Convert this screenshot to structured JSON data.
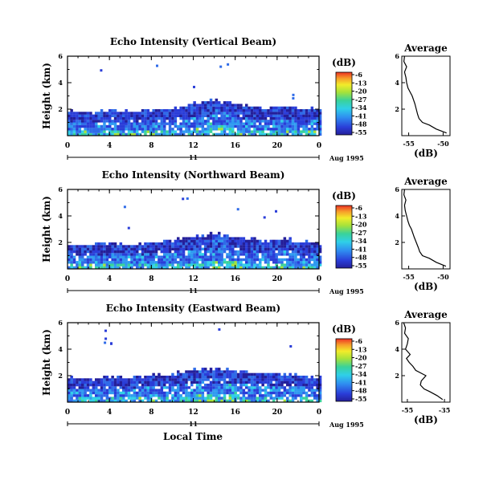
{
  "figure": {
    "time_axis_label": "Local Time",
    "date_label": "Aug 1995",
    "day_label": "11",
    "cbar_unit": "(dB)",
    "avg_title": "Average",
    "avg_xlabel": "(dB)"
  },
  "chart_data": [
    {
      "type": "heatmap",
      "title": "Echo Intensity (Vertical Beam)",
      "ylabel": "Height (km)",
      "xlabel": "Local Time",
      "x_ticks": [
        "0",
        "4",
        "8",
        "12",
        "16",
        "20",
        "0"
      ],
      "x_range_hours": [
        0,
        24
      ],
      "y_ticks": [
        "2",
        "4",
        "6"
      ],
      "y_range_km": [
        0,
        6
      ],
      "colorbar": {
        "unit": "(dB)",
        "ticks": [
          "-6",
          "-13",
          "-20",
          "-27",
          "-34",
          "-41",
          "-48",
          "-55"
        ],
        "range_db": [
          -55,
          -6
        ]
      },
      "echo_top_km": [
        [
          0,
          1.9
        ],
        [
          2,
          1.8
        ],
        [
          4,
          2.0
        ],
        [
          6,
          1.8
        ],
        [
          8,
          2.0
        ],
        [
          10,
          2.1
        ],
        [
          12,
          2.5
        ],
        [
          13.5,
          2.7
        ],
        [
          15,
          2.6
        ],
        [
          17,
          2.3
        ],
        [
          19,
          2.2
        ],
        [
          21,
          2.3
        ],
        [
          22,
          2.1
        ],
        [
          24,
          2.0
        ]
      ],
      "profile": {
        "title": "Average",
        "xlabel": "(dB)",
        "x_ticks": [
          "-55",
          "-50"
        ],
        "x_range": [
          -56,
          -49
        ],
        "y_ticks": [
          "2",
          "4",
          "6"
        ],
        "height_km": [
          0.2,
          0.5,
          0.8,
          1.0,
          1.3,
          1.6,
          2.0,
          2.4,
          2.7,
          3.0,
          3.3,
          3.6,
          4.0,
          4.4,
          4.8,
          5.2,
          5.6,
          6.0
        ],
        "db": [
          -49.5,
          -51,
          -52,
          -53,
          -53.5,
          -53.7,
          -53.9,
          -54.1,
          -54.3,
          -54.5,
          -54.8,
          -55.1,
          -55.3,
          -55.4,
          -55.6,
          -55.3,
          -55.7,
          -55.6
        ]
      }
    },
    {
      "type": "heatmap",
      "title": "Echo Intensity (Northward Beam)",
      "ylabel": "Height (km)",
      "xlabel": "Local Time",
      "x_ticks": [
        "0",
        "4",
        "8",
        "12",
        "16",
        "20",
        "0"
      ],
      "x_range_hours": [
        0,
        24
      ],
      "y_ticks": [
        "2",
        "4",
        "6"
      ],
      "y_range_km": [
        0,
        6
      ],
      "colorbar": {
        "unit": "(dB)",
        "ticks": [
          "-6",
          "-13",
          "-20",
          "-27",
          "-34",
          "-41",
          "-48",
          "-55"
        ],
        "range_db": [
          -55,
          -6
        ]
      },
      "echo_top_km": [
        [
          0,
          1.9
        ],
        [
          2,
          1.8
        ],
        [
          4,
          2.0
        ],
        [
          6,
          1.8
        ],
        [
          8,
          2.1
        ],
        [
          10,
          2.2
        ],
        [
          12,
          2.5
        ],
        [
          13.5,
          2.7
        ],
        [
          15,
          2.6
        ],
        [
          17,
          2.4
        ],
        [
          19,
          2.2
        ],
        [
          21,
          2.3
        ],
        [
          22,
          2.1
        ],
        [
          24,
          2.0
        ]
      ],
      "profile": {
        "title": "Average",
        "xlabel": "(dB)",
        "x_ticks": [
          "-55",
          "-50"
        ],
        "x_range": [
          -56,
          -49
        ],
        "y_ticks": [
          "2",
          "4",
          "6"
        ],
        "height_km": [
          0.2,
          0.5,
          0.8,
          1.0,
          1.3,
          1.6,
          2.0,
          2.4,
          2.7,
          3.0,
          3.3,
          3.6,
          4.0,
          4.4,
          4.8,
          5.2,
          5.6,
          6.0
        ],
        "db": [
          -49.6,
          -51,
          -52,
          -53,
          -53.4,
          -53.6,
          -53.9,
          -54.2,
          -54.4,
          -54.6,
          -54.9,
          -55.1,
          -55.3,
          -55.5,
          -55.6,
          -55.4,
          -55.7,
          -55.6
        ]
      }
    },
    {
      "type": "heatmap",
      "title": "Echo Intensity (Eastward Beam)",
      "ylabel": "Height (km)",
      "xlabel": "Local Time",
      "x_ticks": [
        "0",
        "4",
        "8",
        "12",
        "16",
        "20",
        "0"
      ],
      "x_range_hours": [
        0,
        24
      ],
      "y_ticks": [
        "2",
        "4",
        "6"
      ],
      "y_range_km": [
        0,
        6
      ],
      "colorbar": {
        "unit": "(dB)",
        "ticks": [
          "-6",
          "-13",
          "-20",
          "-27",
          "-34",
          "-41",
          "-48",
          "-55"
        ],
        "range_db": [
          -55,
          -6
        ]
      },
      "echo_top_km": [
        [
          0,
          1.9
        ],
        [
          2,
          1.8
        ],
        [
          4,
          1.9
        ],
        [
          6,
          1.9
        ],
        [
          8,
          2.1
        ],
        [
          10,
          2.2
        ],
        [
          12,
          2.5
        ],
        [
          13.5,
          2.6
        ],
        [
          15,
          2.5
        ],
        [
          17,
          2.3
        ],
        [
          19,
          2.2
        ],
        [
          21,
          2.2
        ],
        [
          22,
          2.0
        ],
        [
          24,
          1.9
        ]
      ],
      "profile": {
        "title": "Average",
        "xlabel": "(dB)",
        "x_ticks": [
          "-55",
          "-35"
        ],
        "x_range": [
          -58,
          -32
        ],
        "y_ticks": [
          "2",
          "4",
          "6"
        ],
        "height_km": [
          0.2,
          0.5,
          0.8,
          1.0,
          1.3,
          1.6,
          2.0,
          2.4,
          2.7,
          3.0,
          3.3,
          3.6,
          4.0,
          4.4,
          4.8,
          5.2,
          5.6,
          6.0
        ],
        "db": [
          -36,
          -39,
          -43,
          -46,
          -48,
          -47.5,
          -45,
          -50.5,
          -52,
          -54,
          -55.5,
          -53.5,
          -56,
          -55,
          -54.5,
          -56.5,
          -56,
          -57
        ]
      }
    }
  ]
}
